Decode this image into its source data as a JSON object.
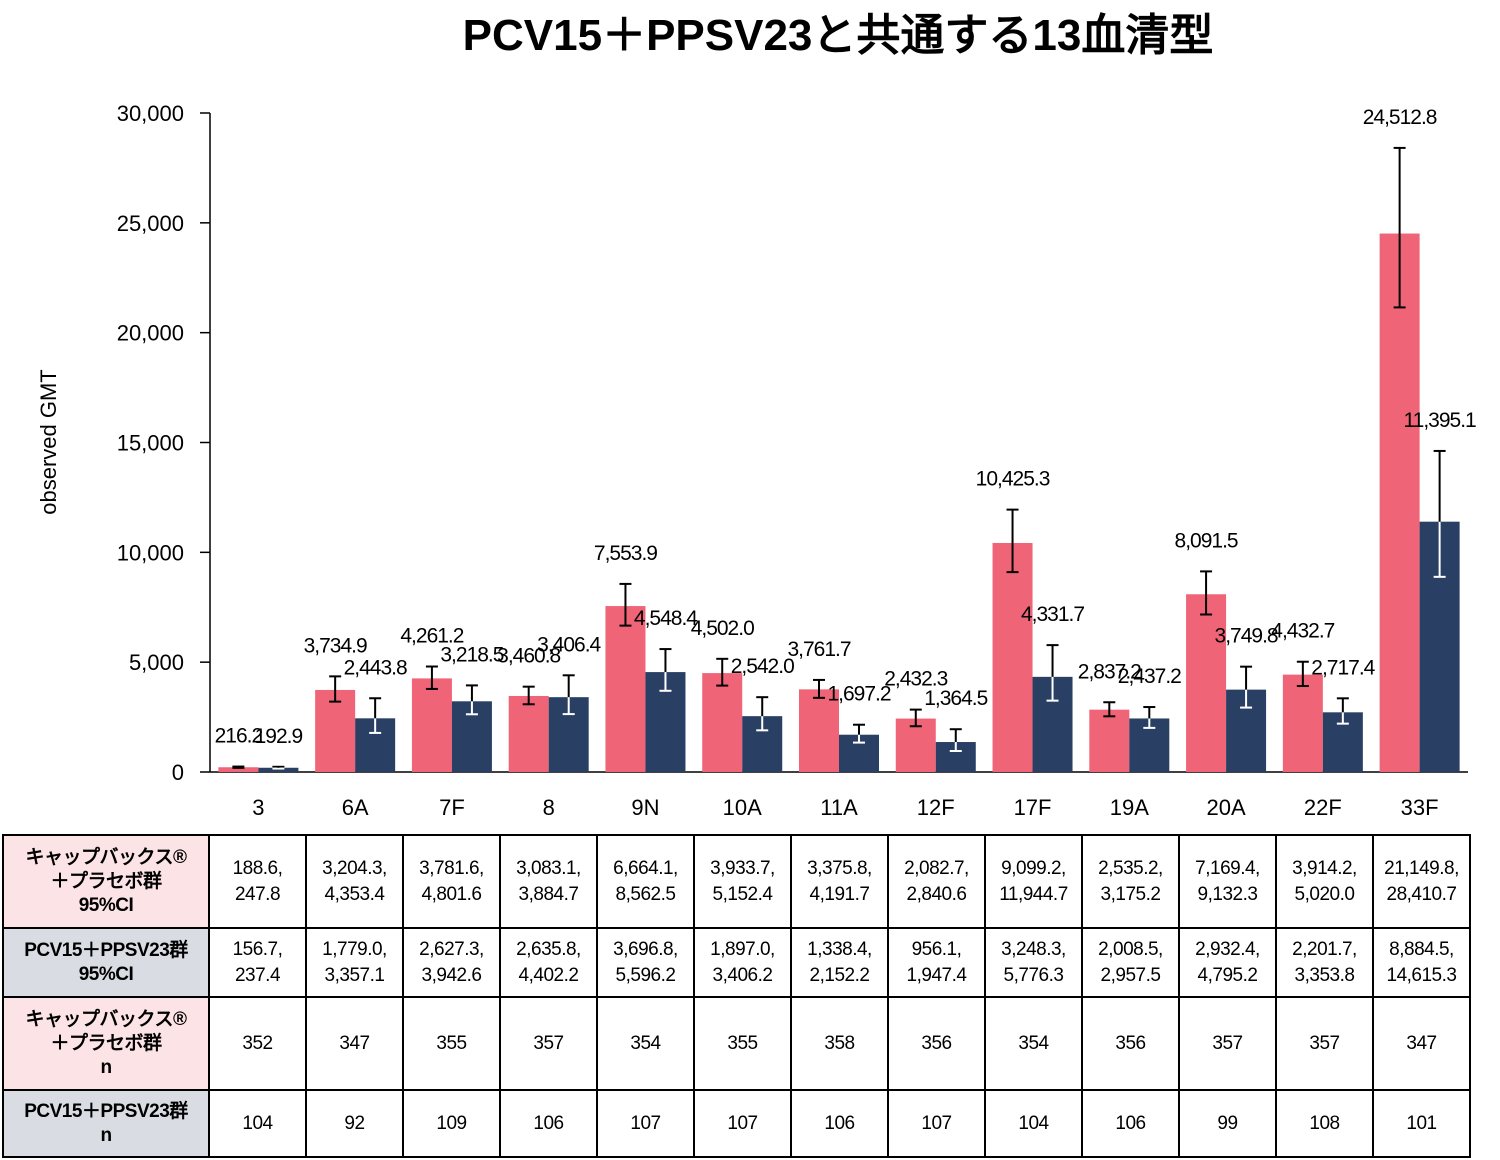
{
  "chart_data": {
    "type": "bar",
    "title": "PCV15＋PPSV23と共通する13血清型",
    "ylabel": "observed GMT",
    "ylim": [
      0,
      30000
    ],
    "yticks": [
      0,
      5000,
      10000,
      15000,
      20000,
      25000,
      30000
    ],
    "ytick_labels": [
      "0",
      "5,000",
      "10,000",
      "15,000",
      "20,000",
      "25,000",
      "30,000"
    ],
    "categories": [
      "3",
      "6A",
      "7F",
      "8",
      "9N",
      "10A",
      "11A",
      "12F",
      "17F",
      "19A",
      "20A",
      "22F",
      "33F"
    ],
    "colors": {
      "series1": "#ef6477",
      "series2": "#2a3f64"
    },
    "series": [
      {
        "values": [
          216.2,
          3734.9,
          4261.2,
          3460.8,
          7553.9,
          4502.0,
          3761.7,
          2432.3,
          10425.3,
          2837.2,
          8091.5,
          4432.7,
          24512.8
        ],
        "labels": [
          "216.2",
          "3,734.9",
          "4,261.2",
          "3,460.8",
          "7,553.9",
          "4,502.0",
          "3,761.7",
          "2,432.3",
          "10,425.3",
          "2,837.2",
          "8,091.5",
          "4,432.7",
          "24,512.8"
        ],
        "ci_low": [
          188.6,
          3204.3,
          3781.6,
          3083.1,
          6664.1,
          3933.7,
          3375.8,
          2082.7,
          9099.2,
          2535.2,
          7169.4,
          3914.2,
          21149.8
        ],
        "ci_high": [
          247.8,
          4353.4,
          4801.6,
          3884.7,
          8562.5,
          5152.4,
          4191.7,
          2840.6,
          11944.7,
          3175.2,
          9132.3,
          5020.0,
          28410.7
        ]
      },
      {
        "values": [
          192.9,
          2443.8,
          3218.5,
          3406.4,
          4548.4,
          2542.0,
          1697.2,
          1364.5,
          4331.7,
          2437.2,
          3749.8,
          2717.4,
          11395.1
        ],
        "labels": [
          "192.9",
          "2,443.8",
          "3,218.5",
          "3,406.4",
          "4,548.4",
          "2,542.0",
          "1,697.2",
          "1,364.5",
          "4,331.7",
          "2,437.2",
          "3,749.8",
          "2,717.4",
          "11,395.1"
        ],
        "ci_low": [
          156.7,
          1779.0,
          2627.3,
          2635.8,
          3696.8,
          1897.0,
          1338.4,
          956.1,
          3248.3,
          2008.5,
          2932.4,
          2201.7,
          8884.5
        ],
        "ci_high": [
          237.4,
          3357.1,
          3942.6,
          4402.2,
          5596.2,
          3406.2,
          2152.2,
          1947.4,
          5776.3,
          2957.5,
          4795.2,
          3353.8,
          14615.3
        ]
      }
    ]
  },
  "table": {
    "rows": [
      {
        "header": "キャップバックス®\n＋プラセボ群\n95%CI",
        "cells": [
          "188.6,\n247.8",
          "3,204.3,\n4,353.4",
          "3,781.6,\n4,801.6",
          "3,083.1,\n3,884.7",
          "6,664.1,\n8,562.5",
          "3,933.7,\n5,152.4",
          "3,375.8,\n4,191.7",
          "2,082.7,\n2,840.6",
          "9,099.2,\n11,944.7",
          "2,535.2,\n3,175.2",
          "7,169.4,\n9,132.3",
          "3,914.2,\n5,020.0",
          "21,149.8,\n28,410.7"
        ]
      },
      {
        "header": "PCV15＋PPSV23群\n95%CI",
        "cells": [
          "156.7,\n237.4",
          "1,779.0,\n3,357.1",
          "2,627.3,\n3,942.6",
          "2,635.8,\n4,402.2",
          "3,696.8,\n5,596.2",
          "1,897.0,\n3,406.2",
          "1,338.4,\n2,152.2",
          "956.1,\n1,947.4",
          "3,248.3,\n5,776.3",
          "2,008.5,\n2,957.5",
          "2,932.4,\n4,795.2",
          "2,201.7,\n3,353.8",
          "8,884.5,\n14,615.3"
        ]
      },
      {
        "header": "キャップバックス®\n＋プラセボ群\nn",
        "cells": [
          "352",
          "347",
          "355",
          "357",
          "354",
          "355",
          "358",
          "356",
          "354",
          "356",
          "357",
          "357",
          "347"
        ]
      },
      {
        "header": "PCV15＋PPSV23群\nn",
        "cells": [
          "104",
          "92",
          "109",
          "106",
          "107",
          "107",
          "106",
          "107",
          "104",
          "106",
          "99",
          "108",
          "101"
        ]
      }
    ]
  }
}
